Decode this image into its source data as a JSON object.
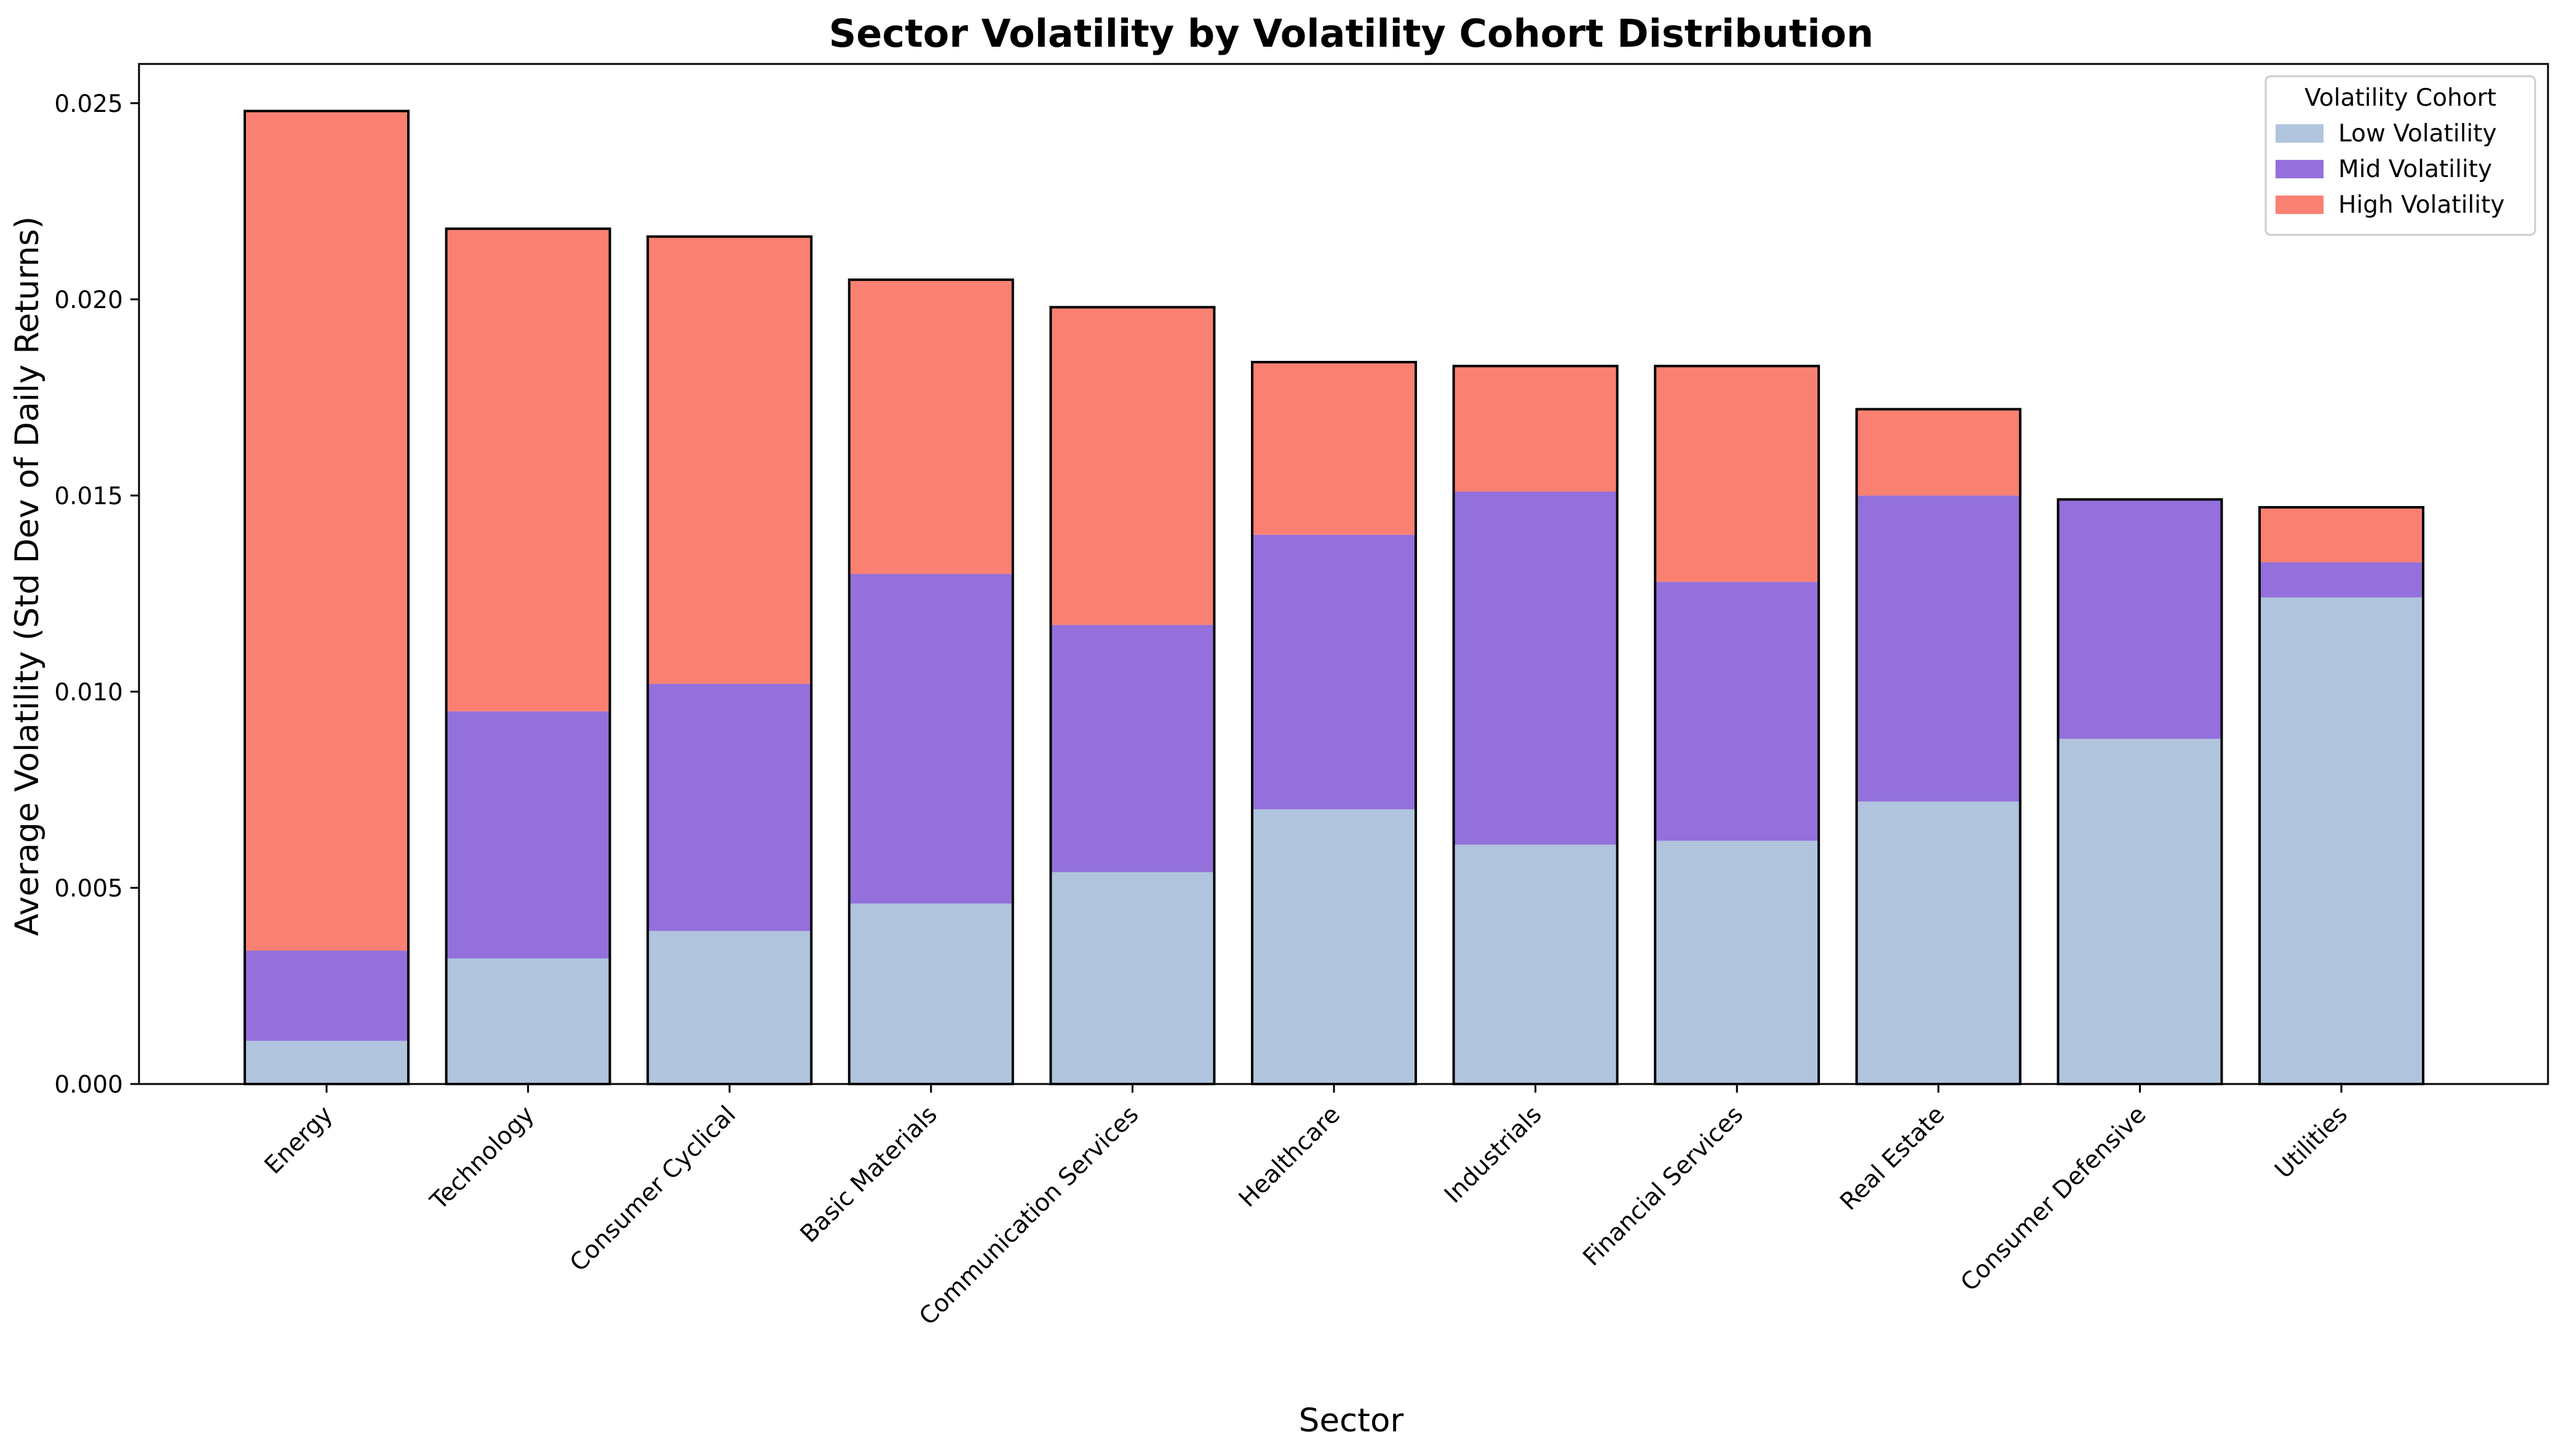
{
  "chart_data": {
    "type": "bar",
    "stacked": true,
    "title": "Sector Volatility by Volatility Cohort Distribution",
    "xlabel": "Sector",
    "ylabel": "Average Volatility (Std Dev of Daily Returns)",
    "ylim": [
      0,
      0.026
    ],
    "yticks": [
      0,
      0.005,
      0.01,
      0.015,
      0.02,
      0.025
    ],
    "ytick_labels": [
      "0.000",
      "0.005",
      "0.010",
      "0.015",
      "0.020",
      "0.025"
    ],
    "grid": false,
    "legend": {
      "title": "Volatility Cohort",
      "position": "top-right"
    },
    "categories": [
      "Energy",
      "Technology",
      "Consumer Cyclical",
      "Basic Materials",
      "Communication Services",
      "Healthcare",
      "Industrials",
      "Financial Services",
      "Real Estate",
      "Consumer Defensive",
      "Utilities"
    ],
    "series": [
      {
        "name": "Low Volatility",
        "color": "#b0c4de",
        "values": [
          0.0011,
          0.0032,
          0.0039,
          0.0046,
          0.0054,
          0.007,
          0.0061,
          0.0062,
          0.0072,
          0.0088,
          0.0124
        ]
      },
      {
        "name": "Mid Volatility",
        "color": "#9370db",
        "values": [
          0.0023,
          0.0063,
          0.0063,
          0.0084,
          0.0063,
          0.007,
          0.009,
          0.0066,
          0.0078,
          0.0061,
          0.0009
        ]
      },
      {
        "name": "High Volatility",
        "color": "#fa8072",
        "values": [
          0.0214,
          0.0123,
          0.0114,
          0.0075,
          0.0081,
          0.0044,
          0.0032,
          0.0055,
          0.0022,
          0.0,
          0.0014
        ]
      }
    ]
  }
}
